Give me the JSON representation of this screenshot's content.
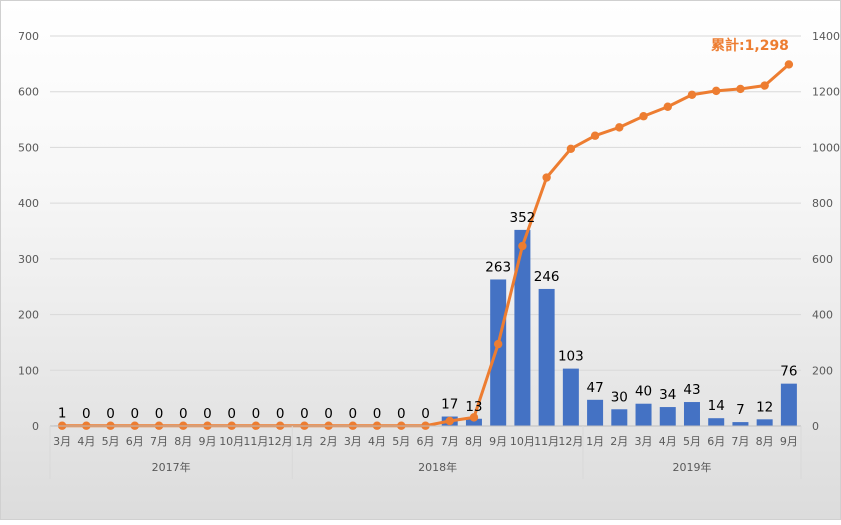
{
  "chart_data": {
    "type": "bar+line",
    "title": "",
    "categories": [
      "3月",
      "4月",
      "5月",
      "6月",
      "7月",
      "8月",
      "9月",
      "10月",
      "11月",
      "12月",
      "1月",
      "2月",
      "3月",
      "4月",
      "5月",
      "6月",
      "7月",
      "8月",
      "9月",
      "10月",
      "11月",
      "12月",
      "1月",
      "2月",
      "3月",
      "4月",
      "5月",
      "6月",
      "7月",
      "8月",
      "9月"
    ],
    "year_labels": [
      {
        "label": "2017年",
        "from": 0,
        "to": 9
      },
      {
        "label": "2018年",
        "from": 10,
        "to": 21
      },
      {
        "label": "2019年",
        "from": 22,
        "to": 30
      }
    ],
    "series": [
      {
        "type": "bar",
        "axis": "left",
        "color": "#4472c4",
        "values": [
          1,
          0,
          0,
          0,
          0,
          0,
          0,
          0,
          0,
          0,
          0,
          0,
          0,
          0,
          0,
          0,
          17,
          13,
          263,
          352,
          246,
          103,
          47,
          30,
          40,
          34,
          43,
          14,
          7,
          12,
          76
        ]
      },
      {
        "type": "line",
        "axis": "right",
        "color": "#ed7d31",
        "values": [
          1,
          1,
          1,
          1,
          1,
          1,
          1,
          1,
          1,
          1,
          1,
          1,
          1,
          1,
          1,
          1,
          18,
          31,
          294,
          646,
          892,
          995,
          1042,
          1072,
          1112,
          1146,
          1189,
          1203,
          1210,
          1222,
          1298
        ]
      }
    ],
    "ylim_left": [
      0,
      700
    ],
    "yticks_left": [
      0,
      100,
      200,
      300,
      400,
      500,
      600,
      700
    ],
    "ylim_right": [
      0,
      1400
    ],
    "yticks_right": [
      0,
      200,
      400,
      600,
      800,
      1000,
      1200,
      1400
    ],
    "grid": true,
    "annotation": "累計:1,298"
  }
}
